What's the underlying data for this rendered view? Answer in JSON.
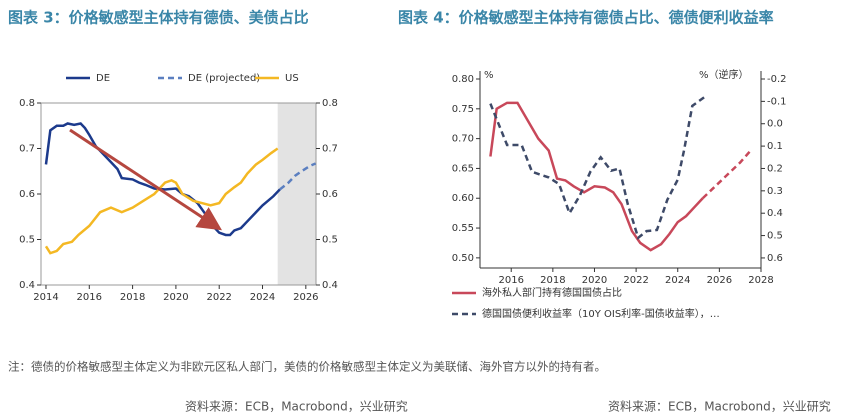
{
  "chart_data": [
    {
      "type": "line",
      "title": "图表 3：价格敏感型主体持有德债、美债占比",
      "source": "资料来源：ECB，Macrobond，兴业研究",
      "xlim": [
        2013.77,
        2026.47
      ],
      "xticks": [
        2014,
        2016,
        2018,
        2020,
        2022,
        2024,
        2026
      ],
      "ylim": [
        0.4,
        0.8
      ],
      "yticks": [
        0.4,
        0.5,
        0.6,
        0.7,
        0.8
      ],
      "mirror_yticks": true,
      "shaded_xrange": [
        2024.7,
        2026.47
      ],
      "legend": "top",
      "series": [
        {
          "name": "DE",
          "color": "#1c3a8c",
          "dash": false,
          "x": [
            2014.0,
            2014.2,
            2014.5,
            2014.8,
            2015.0,
            2015.3,
            2015.6,
            2015.8,
            2016.0,
            2016.3,
            2016.6,
            2017.0,
            2017.3,
            2017.5,
            2018.0,
            2018.3,
            2018.6,
            2019.0,
            2019.5,
            2020.0,
            2020.3,
            2020.6,
            2021.0,
            2021.3,
            2021.6,
            2021.8,
            2022.0,
            2022.3,
            2022.5,
            2022.7,
            2023.0,
            2023.3,
            2023.6,
            2024.0,
            2024.5,
            2024.8
          ],
          "values": [
            0.665,
            0.74,
            0.75,
            0.75,
            0.755,
            0.752,
            0.755,
            0.745,
            0.73,
            0.705,
            0.69,
            0.67,
            0.655,
            0.635,
            0.632,
            0.625,
            0.62,
            0.612,
            0.61,
            0.612,
            0.6,
            0.595,
            0.58,
            0.56,
            0.54,
            0.525,
            0.515,
            0.51,
            0.51,
            0.52,
            0.525,
            0.54,
            0.555,
            0.575,
            0.595,
            0.61
          ]
        },
        {
          "name": "DE (projected)",
          "color": "#5b7fc0",
          "dash": true,
          "x": [
            2024.8,
            2025.2,
            2025.5,
            2025.8,
            2026.2,
            2026.45
          ],
          "values": [
            0.61,
            0.625,
            0.64,
            0.65,
            0.662,
            0.667
          ]
        },
        {
          "name": "US",
          "color": "#f4b823",
          "dash": false,
          "x": [
            2014.0,
            2014.2,
            2014.5,
            2014.8,
            2015.2,
            2015.5,
            2016.0,
            2016.5,
            2017.0,
            2017.5,
            2018.0,
            2018.5,
            2019.0,
            2019.5,
            2019.8,
            2020.0,
            2020.3,
            2020.8,
            2021.2,
            2021.6,
            2022.0,
            2022.3,
            2022.7,
            2023.0,
            2023.3,
            2023.7,
            2024.0,
            2024.4,
            2024.7
          ],
          "values": [
            0.485,
            0.47,
            0.475,
            0.49,
            0.495,
            0.51,
            0.53,
            0.56,
            0.57,
            0.56,
            0.57,
            0.585,
            0.6,
            0.625,
            0.63,
            0.625,
            0.6,
            0.585,
            0.58,
            0.575,
            0.58,
            0.6,
            0.615,
            0.625,
            0.645,
            0.665,
            0.675,
            0.69,
            0.7
          ]
        }
      ]
    },
    {
      "type": "line",
      "title": "图表 4：价格敏感型主体持有德债占比、德债便利收益率",
      "source": "资料来源：ECB，Macrobond，兴业研究",
      "xlim": [
        2014.5,
        2028
      ],
      "xticks": [
        2016,
        2018,
        2020,
        2022,
        2024,
        2026,
        2028
      ],
      "ylim": [
        0.483,
        0.8
      ],
      "yticks": [
        {
          "value": 0.5,
          "label": "0.50"
        },
        0.55,
        {
          "value": 0.6,
          "label": "0.60"
        },
        0.65,
        {
          "value": 0.7,
          "label": "0.70"
        },
        0.75,
        {
          "value": 0.8,
          "label": "0.80"
        }
      ],
      "y2lim": [
        -0.2,
        0.645
      ],
      "y2_inverted": true,
      "y2ticks": [
        -0.2,
        -0.1,
        {
          "value": 0,
          "label": "0.0"
        },
        0.1,
        0.2,
        0.3,
        0.4,
        0.5,
        0.6
      ],
      "y_unit": "%",
      "y2_unit": "%（逆序）",
      "legend": "bottom",
      "series": [
        {
          "name": "海外私人部门持有德国国债占比",
          "color": "#c8485a",
          "dash": false,
          "dash_from": 2025.2,
          "x": [
            2015.0,
            2015.3,
            2015.8,
            2016.3,
            2016.8,
            2017.3,
            2017.8,
            2018.2,
            2018.6,
            2019.0,
            2019.5,
            2020.0,
            2020.5,
            2020.9,
            2021.3,
            2021.8,
            2022.2,
            2022.7,
            2023.2,
            2023.6,
            2024.0,
            2024.4,
            2024.8,
            2025.2,
            2025.8,
            2026.4,
            2027.0,
            2027.5
          ],
          "values": [
            0.67,
            0.75,
            0.76,
            0.76,
            0.73,
            0.7,
            0.68,
            0.633,
            0.63,
            0.62,
            0.61,
            0.62,
            0.618,
            0.61,
            0.59,
            0.545,
            0.525,
            0.513,
            0.523,
            0.54,
            0.56,
            0.57,
            0.585,
            0.6,
            0.62,
            0.64,
            0.66,
            0.68
          ]
        },
        {
          "name": "德国国债便利收益率（10Y OIS利率-国债收益率），…",
          "color": "#3e4a68",
          "dash": true,
          "axis": "y2",
          "x": [
            2015.0,
            2015.8,
            2016.5,
            2017.0,
            2017.8,
            2018.3,
            2018.8,
            2019.3,
            2019.8,
            2020.3,
            2020.8,
            2021.2,
            2021.6,
            2022.1,
            2022.5,
            2023.0,
            2023.5,
            2024.0,
            2024.3,
            2024.7,
            2025.3
          ],
          "values": [
            -0.09,
            0.095,
            0.095,
            0.215,
            0.24,
            0.27,
            0.4,
            0.32,
            0.215,
            0.15,
            0.21,
            0.2,
            0.36,
            0.51,
            0.48,
            0.475,
            0.34,
            0.25,
            0.12,
            -0.08,
            -0.12
          ]
        }
      ]
    }
  ],
  "note": "注：德债的价格敏感型主体定义为非欧元区私人部门，美债的价格敏感型主体定义为美联储、海外官方以外的持有者。"
}
